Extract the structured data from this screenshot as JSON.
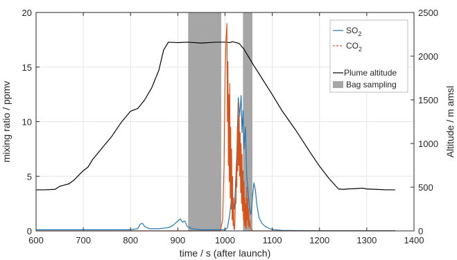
{
  "chart_data": {
    "type": "line",
    "xlabel": "time / s (after launch)",
    "ylabel_left": "mixing ratio / ppmv",
    "ylabel_right": "Altitude / m amsl",
    "xlim": [
      600,
      1400
    ],
    "ylim_left": [
      0,
      20
    ],
    "ylim_right": [
      0,
      2500
    ],
    "x_ticks": [
      600,
      700,
      800,
      900,
      1000,
      1100,
      1200,
      1300,
      1400
    ],
    "y_ticks_left": [
      0,
      5,
      10,
      15,
      20
    ],
    "y_ticks_right": [
      0,
      500,
      1000,
      1500,
      2000,
      2500
    ],
    "grid": true,
    "legend_position": "top-right",
    "legend": {
      "so2": {
        "base": "SO",
        "sub": "2"
      },
      "co2": {
        "base": "CO",
        "sub": "2"
      },
      "altitude": "Plume altitude",
      "bag": "Bag sampling"
    },
    "bag_sampling_intervals": [
      [
        922,
        992
      ],
      [
        1038,
        1058
      ]
    ],
    "series": [
      {
        "name": "Plume altitude",
        "axis": "right",
        "color": "#000000",
        "x": [
          600,
          620,
          640,
          650,
          660,
          670,
          680,
          700,
          710,
          720,
          740,
          760,
          780,
          800,
          815,
          830,
          845,
          860,
          870,
          880,
          900,
          920,
          950,
          980,
          1000,
          1010,
          1015,
          1020,
          1030,
          1040,
          1060,
          1080,
          1100,
          1120,
          1150,
          1180,
          1200,
          1220,
          1240,
          1250,
          1260,
          1280,
          1290,
          1300,
          1320,
          1340,
          1360
        ],
        "values": [
          470,
          470,
          475,
          510,
          525,
          540,
          580,
          690,
          730,
          820,
          950,
          1080,
          1240,
          1370,
          1400,
          1500,
          1640,
          1840,
          2070,
          2160,
          2155,
          2160,
          2150,
          2160,
          2160,
          2155,
          2165,
          2160,
          2145,
          2080,
          1900,
          1730,
          1560,
          1380,
          1150,
          900,
          740,
          600,
          480,
          475,
          480,
          485,
          490,
          480,
          475,
          470,
          470
        ]
      },
      {
        "name": "SO2",
        "axis": "left",
        "color": "#1f77b4",
        "x": [
          600,
          650,
          700,
          750,
          800,
          815,
          820,
          825,
          830,
          840,
          860,
          880,
          890,
          900,
          905,
          910,
          915,
          920,
          930,
          950,
          980,
          1000,
          1005,
          1010,
          1015,
          1020,
          1025,
          1028,
          1031,
          1034,
          1036,
          1038,
          1040,
          1043,
          1046,
          1049,
          1052,
          1055,
          1058,
          1061,
          1064,
          1068,
          1072,
          1078,
          1085,
          1095,
          1105,
          1120,
          1150,
          1200,
          1250,
          1300,
          1360
        ],
        "values": [
          0.1,
          0.1,
          0.1,
          0.1,
          0.1,
          0.2,
          0.6,
          0.7,
          0.4,
          0.2,
          0.2,
          0.3,
          0.5,
          0.9,
          1.1,
          0.8,
          0.9,
          0.4,
          0.2,
          0.1,
          0.1,
          0.1,
          0.3,
          1.5,
          3.5,
          2.0,
          7.0,
          12.2,
          10.5,
          12.4,
          9.0,
          11.0,
          7.5,
          9.5,
          5.0,
          3.5,
          2.0,
          1.5,
          3.0,
          4.4,
          3.8,
          2.2,
          1.2,
          0.7,
          0.4,
          0.2,
          0.1,
          0.05,
          0.03,
          0.02,
          0.02,
          0.02,
          0.02
        ]
      },
      {
        "name": "CO2",
        "axis": "left",
        "color": "#d95319",
        "x": [
          600,
          900,
          990,
          995,
          998,
          1000,
          1002,
          1004,
          1005,
          1006,
          1007,
          1008,
          1009,
          1010,
          1011,
          1012,
          1013,
          1014,
          1015,
          1016,
          1017,
          1018,
          1019,
          1020,
          1021,
          1022,
          1023,
          1024,
          1025,
          1026,
          1027,
          1028,
          1029,
          1030,
          1031,
          1032,
          1033,
          1034,
          1035,
          1036,
          1037,
          1038,
          1039,
          1040,
          1041,
          1042,
          1043,
          1044,
          1045,
          1046,
          1047,
          1048,
          1049,
          1050,
          1051,
          1052,
          1054,
          1056,
          1060,
          1100,
          1360
        ],
        "values": [
          0,
          0,
          0,
          1.0,
          6.0,
          14.0,
          17.5,
          19.0,
          10.0,
          15.5,
          6.0,
          12.5,
          4.5,
          13.5,
          3.0,
          9.5,
          2.0,
          7.5,
          1.0,
          5.0,
          0.5,
          3.0,
          0.2,
          0.1,
          0.8,
          3.0,
          2.5,
          6.0,
          4.0,
          9.5,
          5.5,
          11.8,
          6.0,
          10.5,
          5.0,
          9.0,
          3.5,
          8.0,
          2.5,
          7.0,
          1.8,
          5.5,
          1.0,
          4.5,
          0.5,
          3.0,
          0.3,
          2.5,
          0.2,
          4.0,
          1.0,
          3.0,
          0.5,
          2.0,
          0.3,
          1.0,
          0.3,
          0.1,
          0.0,
          0.0,
          0.0
        ]
      }
    ]
  }
}
